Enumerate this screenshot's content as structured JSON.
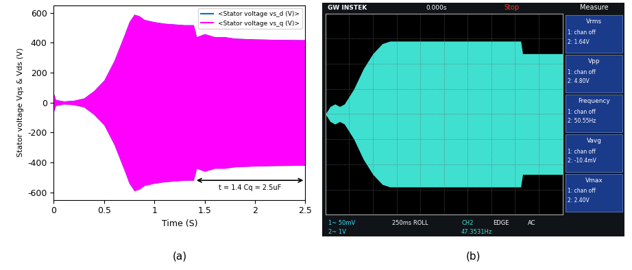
{
  "chart_data": [
    {
      "type": "area",
      "caption": "(a)",
      "x_label": "Time (S)",
      "y_label": "Stator voltage Vqs & Vds (V)",
      "x": [
        0,
        0.02,
        0.1,
        0.2,
        0.3,
        0.4,
        0.5,
        0.6,
        0.7,
        0.75,
        0.8,
        0.85,
        0.9,
        1.0,
        1.1,
        1.2,
        1.3,
        1.39,
        1.42,
        1.5,
        1.6,
        1.7,
        1.8,
        2.0,
        2.2,
        2.5
      ],
      "series": [
        {
          "name": "<Stator voltage vs_d (V)>",
          "color": "#0072bd",
          "upper": [
            60,
            20,
            10,
            15,
            30,
            80,
            150,
            280,
            450,
            540,
            590,
            580,
            555,
            540,
            530,
            525,
            520,
            520,
            440,
            460,
            440,
            440,
            430,
            425,
            422,
            420
          ],
          "lower": [
            -60,
            -20,
            -10,
            -15,
            -30,
            -80,
            -150,
            -280,
            -450,
            -540,
            -590,
            -580,
            -555,
            -540,
            -530,
            -525,
            -520,
            -520,
            -440,
            -460,
            -440,
            -440,
            -430,
            -425,
            -422,
            -420
          ]
        },
        {
          "name": "<Stator voltage vs_q (V)>",
          "color": "#ff00ff",
          "upper": [
            60,
            20,
            10,
            15,
            30,
            80,
            150,
            280,
            450,
            540,
            590,
            580,
            555,
            540,
            530,
            525,
            520,
            520,
            440,
            460,
            440,
            440,
            430,
            425,
            422,
            420
          ],
          "lower": [
            -60,
            -20,
            -10,
            -15,
            -30,
            -80,
            -150,
            -280,
            -450,
            -540,
            -590,
            -580,
            -555,
            -540,
            -530,
            -525,
            -520,
            -520,
            -440,
            -460,
            -440,
            -440,
            -430,
            -425,
            -422,
            -420
          ]
        }
      ],
      "xlim": [
        0,
        2.5
      ],
      "xticks": [
        0,
        0.5,
        1,
        1.5,
        2,
        2.5
      ],
      "ylim": [
        -650,
        650
      ],
      "yticks": [
        -600,
        -400,
        -200,
        0,
        200,
        400,
        600
      ],
      "legend": "upper right",
      "annotation": {
        "text": "t = 1.4 Cq = 2.5uF",
        "x_start": 1.4,
        "x_end": 2.5,
        "y": -520
      }
    },
    {
      "type": "area",
      "caption": "(b)",
      "x": [
        0,
        0.05,
        0.1,
        0.15,
        0.2,
        0.3,
        0.4,
        0.5,
        0.6,
        0.68,
        0.8,
        1.0,
        1.5,
        2.0,
        2.06,
        2.08,
        2.5
      ],
      "upper": [
        0,
        0.3,
        0.4,
        0.3,
        0.4,
        1.0,
        1.8,
        2.4,
        2.8,
        2.9,
        2.9,
        2.9,
        2.9,
        2.9,
        2.9,
        2.4,
        2.4
      ],
      "lower": [
        0,
        -0.3,
        -0.4,
        -0.3,
        -0.4,
        -1.0,
        -1.8,
        -2.4,
        -2.8,
        -2.9,
        -2.9,
        -2.9,
        -2.9,
        -2.9,
        -2.9,
        -2.4,
        -2.4
      ],
      "color": "#3fe0d0",
      "xlim": [
        0,
        2.5
      ],
      "xticks": [
        0,
        0.25,
        0.5,
        0.75,
        1,
        1.25,
        1.5,
        1.75,
        2,
        2.25,
        2.5
      ],
      "ylim": [
        -4,
        4
      ],
      "yticks": [
        -4,
        -3,
        -2,
        -1,
        0,
        1,
        2,
        3,
        4
      ],
      "grid": true,
      "tick_labels": false,
      "brand": "GW INSTEK",
      "time_offset": "0.000s",
      "status": "Stop",
      "menu": "Measure",
      "measurements": [
        {
          "name": "Vrms",
          "ch1": "1: chan off",
          "ch2": "2: 1.64V"
        },
        {
          "name": "Vpp",
          "ch1": "1: chan off",
          "ch2": "2: 4.80V"
        },
        {
          "name": "Frequency",
          "ch1": "1: chan off",
          "ch2": "2: 50.55Hz"
        },
        {
          "name": "Vavg",
          "ch1": "1: chan off",
          "ch2": "2: -10.4mV"
        },
        {
          "name": "Vmax",
          "ch1": "1: chan off",
          "ch2": "2: 2.40V"
        }
      ],
      "status_bar": [
        "1~ 50mV",
        "2~ 1V",
        "250ms ROLL",
        "CH2",
        "EDGE",
        "AC",
        "47.3531Hz"
      ]
    }
  ]
}
